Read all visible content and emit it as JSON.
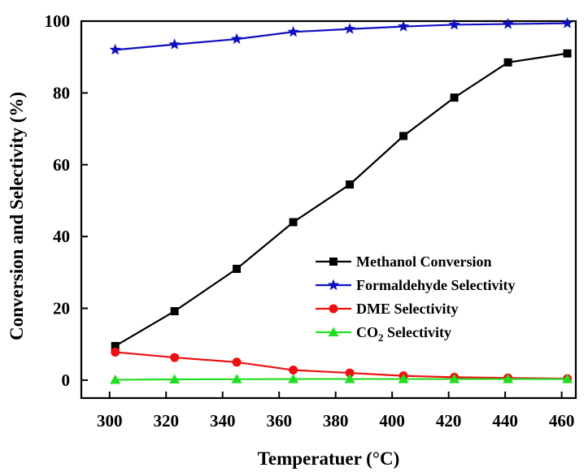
{
  "chart_data": {
    "type": "line",
    "title": "",
    "xlabel": "Temperatuer (°C)",
    "ylabel": "Conversion and Selectivity (%)",
    "xlim": [
      290,
      465
    ],
    "ylim": [
      -5,
      100
    ],
    "xticks": [
      300,
      320,
      340,
      360,
      380,
      400,
      420,
      440,
      460
    ],
    "yticks": [
      0,
      20,
      40,
      60,
      80,
      100
    ],
    "grid": false,
    "legend_position": "lower-right",
    "series": [
      {
        "name": "Methanol Conversion",
        "color": "#000000",
        "marker": "square",
        "x": [
          302,
          323,
          345,
          365,
          385,
          404,
          422,
          441,
          462
        ],
        "y": [
          9.5,
          19.2,
          31.0,
          44.0,
          54.5,
          68.0,
          78.7,
          88.5,
          91.0
        ]
      },
      {
        "name": "Formaldehyde Selectivity",
        "color": "#1010c0",
        "marker": "star",
        "x": [
          302,
          323,
          345,
          365,
          385,
          404,
          422,
          441,
          462
        ],
        "y": [
          92.0,
          93.5,
          95.0,
          97.0,
          97.8,
          98.5,
          99.0,
          99.2,
          99.4
        ]
      },
      {
        "name": "DME Selectivity",
        "color": "#ee1010",
        "marker": "circle",
        "x": [
          302,
          323,
          345,
          365,
          385,
          404,
          422,
          441,
          462
        ],
        "y": [
          7.8,
          6.3,
          5.0,
          2.8,
          2.0,
          1.2,
          0.8,
          0.6,
          0.4
        ]
      },
      {
        "name": "CO",
        "name_subscript": "2",
        "name_suffix": " Selectivity",
        "color": "#22dd22",
        "marker": "triangle",
        "x": [
          302,
          323,
          345,
          365,
          385,
          404,
          422,
          441,
          462
        ],
        "y": [
          0.1,
          0.2,
          0.25,
          0.3,
          0.3,
          0.3,
          0.3,
          0.3,
          0.3
        ]
      }
    ]
  }
}
